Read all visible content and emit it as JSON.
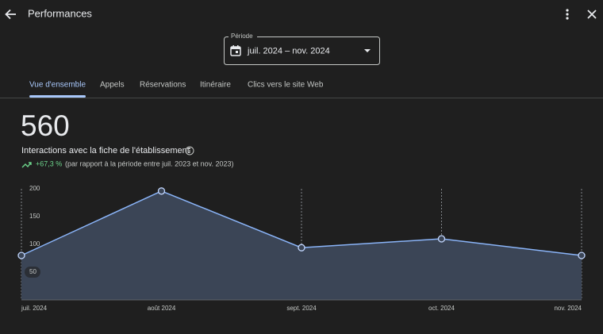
{
  "header": {
    "title": "Performances"
  },
  "period": {
    "label": "Période",
    "value": "juil. 2024 – nov. 2024"
  },
  "tabs": [
    "Vue d'ensemble",
    "Appels",
    "Réservations",
    "Itinéraire",
    "Clics vers le site Web"
  ],
  "active_tab": 0,
  "summary": {
    "total": 560,
    "label": "Interactions avec la fiche de l'établissement",
    "change": "+67,3 %",
    "comparison": "(par rapport à la période entre juil. 2023 et nov. 2023)"
  },
  "chart_data": {
    "type": "area",
    "categories": [
      "juil. 2024",
      "août 2024",
      "sept. 2024",
      "oct. 2024",
      "nov. 2024"
    ],
    "series": [
      {
        "name": "Interactions",
        "color": "#8ab4f8",
        "values": [
          80,
          196,
          94,
          110,
          80
        ]
      }
    ],
    "ylim": [
      0,
      200
    ],
    "yticks": [
      50,
      100,
      150,
      200
    ],
    "grid": true
  }
}
